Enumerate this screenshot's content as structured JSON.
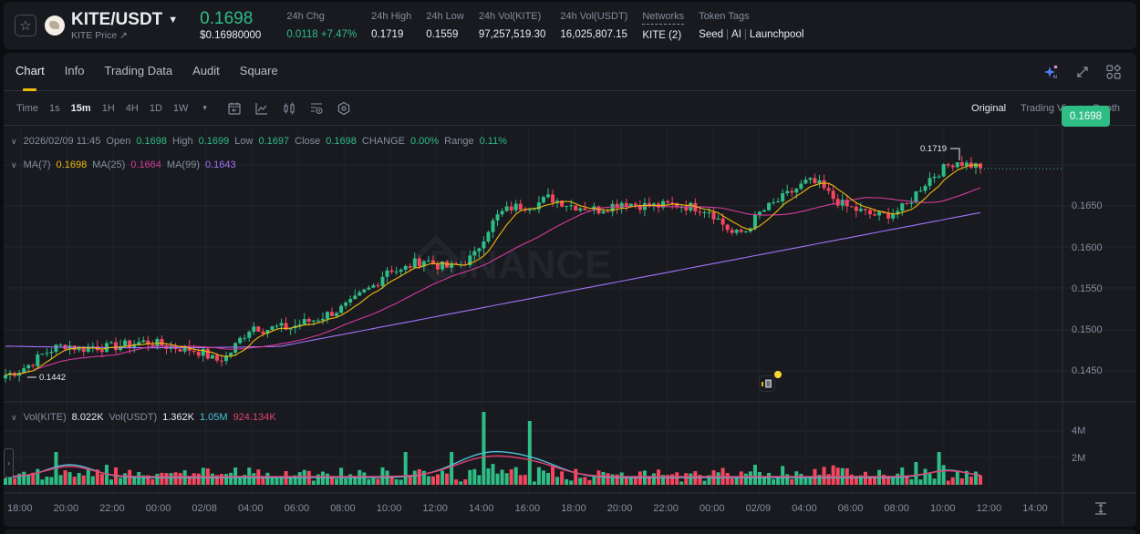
{
  "ticker": {
    "favorite_icon": "star-icon",
    "symbol": "KITE/USDT",
    "sub_link": "KITE Price ↗",
    "last_price": "0.1698",
    "usd_price": "$0.16980000",
    "stats": [
      {
        "label": "24h Chg",
        "value": "0.0118 +7.47%",
        "color": "green"
      },
      {
        "label": "24h High",
        "value": "0.1719"
      },
      {
        "label": "24h Low",
        "value": "0.1559"
      },
      {
        "label": "24h Vol(KITE)",
        "value": "97,257,519.30"
      },
      {
        "label": "24h Vol(USDT)",
        "value": "16,025,807.15"
      },
      {
        "label": "Networks",
        "value": "KITE (2)"
      }
    ],
    "token_tags_label": "Token Tags",
    "token_tags": [
      "Seed",
      "AI",
      "Launchpool"
    ]
  },
  "tabs": [
    {
      "label": "Chart",
      "active": true
    },
    {
      "label": "Info"
    },
    {
      "label": "Trading Data"
    },
    {
      "label": "Audit"
    },
    {
      "label": "Square"
    }
  ],
  "tab_icons": [
    "ai-sparkle-icon",
    "expand-icon",
    "layout-grid-icon"
  ],
  "toolbar": {
    "intervals": [
      {
        "label": "Time"
      },
      {
        "label": "1s"
      },
      {
        "label": "15m",
        "active": true
      },
      {
        "label": "1H"
      },
      {
        "label": "4H"
      },
      {
        "label": "1D"
      },
      {
        "label": "1W"
      }
    ],
    "more_icon": "▾",
    "tools": [
      "calendar-icon",
      "indicator-icon",
      "candle-type-icon",
      "chart-settings-icon",
      "hexagon-settings-icon"
    ],
    "views": [
      {
        "label": "Original",
        "active": true
      },
      {
        "label": "Trading View"
      },
      {
        "label": "Depth"
      }
    ]
  },
  "ohlc_legend": {
    "datetime": "2026/02/09 11:45",
    "open_label": "Open",
    "open": "0.1698",
    "high_label": "High",
    "high": "0.1699",
    "low_label": "Low",
    "low": "0.1697",
    "close_label": "Close",
    "close": "0.1698",
    "change_label": "CHANGE",
    "change": "0.00%",
    "range_label": "Range",
    "range": "0.11%"
  },
  "ma_legend": {
    "ma7_label": "MA(7)",
    "ma7": "0.1698",
    "ma25_label": "MA(25)",
    "ma25": "0.1664",
    "ma99_label": "MA(99)",
    "ma99": "0.1643"
  },
  "vol_legend": {
    "vol_kite_label": "Vol(KITE)",
    "vol_kite": "8.022K",
    "vol_usdt_label": "Vol(USDT)",
    "vol_usdt": "1.362K",
    "ma_a": "1.05M",
    "ma_b": "924.134K"
  },
  "price_axis": [
    "0.1650",
    "0.1600",
    "0.1550",
    "0.1500",
    "0.1450"
  ],
  "current_price_tag": "0.1698",
  "high_marker": "0.1719",
  "low_marker": "0.1442",
  "volume_axis": [
    "4M",
    "2M"
  ],
  "time_axis": [
    "18:00",
    "20:00",
    "22:00",
    "00:00",
    "02/08",
    "04:00",
    "06:00",
    "08:00",
    "10:00",
    "12:00",
    "14:00",
    "16:00",
    "18:00",
    "20:00",
    "22:00",
    "00:00",
    "02/09",
    "04:00",
    "06:00",
    "08:00",
    "10:00",
    "12:00",
    "14:00"
  ],
  "watermark": "BINANCE",
  "colors": {
    "up": "#2ebd85",
    "down": "#f6465d",
    "ma7": "#f0b90b",
    "ma25": "#d63b9c",
    "ma99": "#a371f7",
    "vol_ma_a": "#4fc0d9",
    "vol_ma_b": "#e3416f",
    "accent": "#f0b90b"
  },
  "chart_data": {
    "type": "candlestick",
    "title": "KITE/USDT 15m",
    "ylim": [
      0.1425,
      0.173
    ],
    "price_path": [
      0.1445,
      0.145,
      0.1458,
      0.147,
      0.1478,
      0.1482,
      0.1476,
      0.148,
      0.1478,
      0.148,
      0.1482,
      0.1485,
      0.1484,
      0.148,
      0.1478,
      0.1476,
      0.1472,
      0.1462,
      0.1468,
      0.1488,
      0.1505,
      0.15,
      0.1503,
      0.1502,
      0.1508,
      0.1512,
      0.1518,
      0.1524,
      0.1532,
      0.1545,
      0.1555,
      0.1575,
      0.157,
      0.158,
      0.1585,
      0.1578,
      0.1575,
      0.158,
      0.159,
      0.162,
      0.164,
      0.1648,
      0.165,
      0.1652,
      0.166,
      0.1655,
      0.165,
      0.1648,
      0.1645,
      0.165,
      0.1655,
      0.1652,
      0.165,
      0.165,
      0.1652,
      0.165,
      0.1648,
      0.1645,
      0.163,
      0.1615,
      0.162,
      0.164,
      0.165,
      0.166,
      0.167,
      0.168,
      0.1675,
      0.166,
      0.165,
      0.1645,
      0.164,
      0.1638,
      0.1642,
      0.165,
      0.167,
      0.1685,
      0.1695,
      0.1705,
      0.17,
      0.1698
    ]
  }
}
